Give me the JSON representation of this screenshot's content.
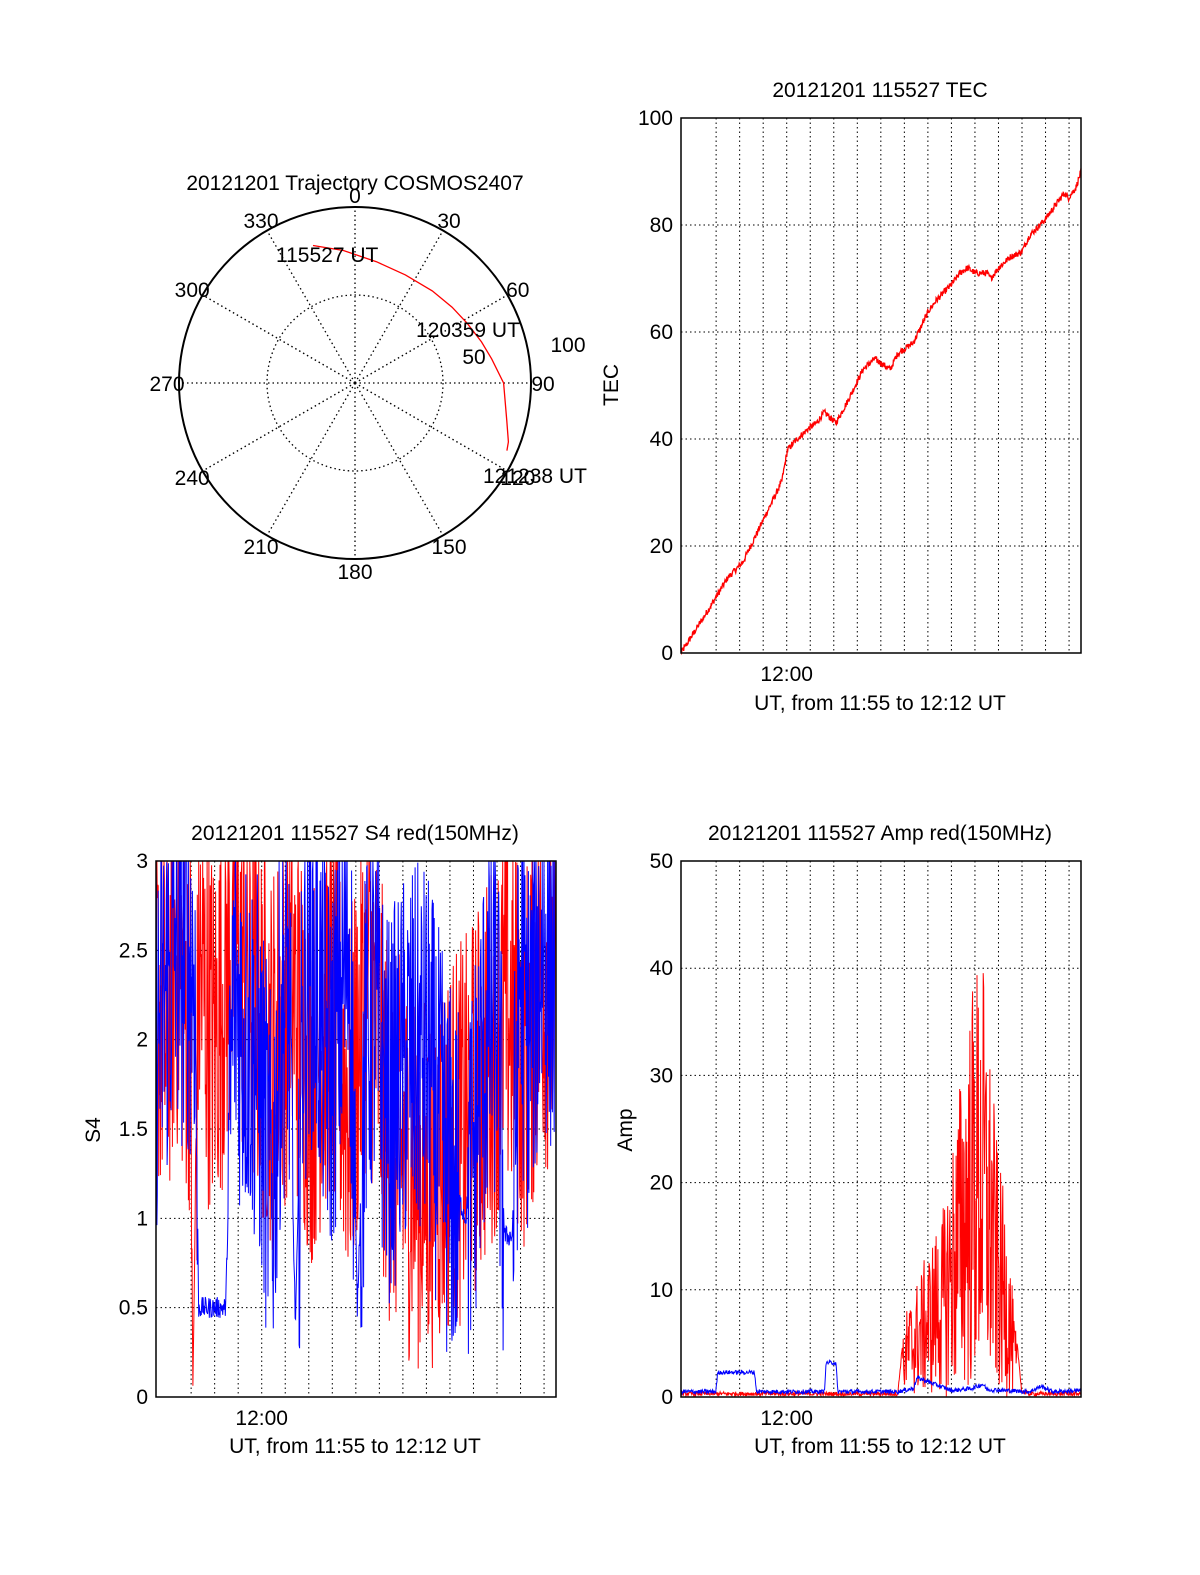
{
  "colors": {
    "red": "#ff0000",
    "blue": "#0000ff",
    "axis": "#000000",
    "grid": "#000000"
  },
  "chart_data": [
    {
      "type": "polar",
      "title": "20121201 Trajectory COSMOS2407",
      "azimuth_labels": [
        "0",
        "30",
        "60",
        "90",
        "120",
        "150",
        "180",
        "210",
        "240",
        "270",
        "300",
        "330"
      ],
      "radius_labels": [
        "50",
        "100"
      ],
      "series": [
        {
          "color": "red",
          "azimuth": [
            -17,
            -5,
            10,
            25,
            40,
            52,
            62,
            72,
            80,
            90,
            104,
            111,
            114
          ],
          "zenith": [
            73.5,
            68,
            63,
            61,
            61.5,
            63,
            65,
            68,
            71,
            76,
            80,
            84,
            85
          ]
        }
      ],
      "annotations": [
        "115527 UT",
        "120359 UT",
        "121238 UT"
      ]
    },
    {
      "type": "line",
      "title": "20121201 115527 TEC",
      "xlabel": "UT, from 11:55 to 12:12 UT",
      "ylabel": "TEC",
      "xlim": [
        0,
        1033
      ],
      "xtick_label": "12:00",
      "xtick_value": 273,
      "ylim": [
        0,
        100
      ],
      "yticks": [
        "0",
        "20",
        "40",
        "60",
        "80",
        "100"
      ],
      "grid": true,
      "series": [
        {
          "color": "red",
          "x": [
            0,
            70,
            120,
            160,
            200,
            260,
            275,
            300,
            330,
            350,
            370,
            400,
            430,
            450,
            470,
            500,
            540,
            560,
            600,
            640,
            660,
            700,
            720,
            740,
            760,
            790,
            800,
            820,
            850,
            880,
            900,
            940,
            990,
            1000,
            1020,
            1033
          ],
          "y": [
            0,
            8,
            14,
            17,
            23,
            32,
            38,
            40,
            42,
            43,
            45,
            43,
            47,
            50,
            53,
            55,
            53,
            56,
            58,
            64,
            66,
            69,
            71,
            72,
            71,
            71,
            70,
            72,
            74,
            75,
            78,
            81,
            86,
            85,
            87,
            90
          ]
        }
      ]
    },
    {
      "type": "line",
      "title": "20121201 115527 S4 red(150MHz)",
      "xlabel": "UT, from 11:55 to 12:12 UT",
      "ylabel": "S4",
      "xlim": [
        0,
        1033
      ],
      "xtick_label": "12:00",
      "xtick_value": 273,
      "ylim": [
        0,
        3
      ],
      "yticks": [
        "0",
        "0.5",
        "1",
        "1.5",
        "2",
        "2.5",
        "3"
      ],
      "grid": true,
      "series": [
        {
          "color": "red",
          "x": [
            0,
            25,
            50,
            75,
            90,
            95,
            110,
            150,
            200,
            250,
            300,
            350,
            400,
            450,
            500,
            550,
            600,
            650,
            700,
            750,
            800,
            850,
            900,
            950,
            1000,
            1033
          ],
          "y": [
            2.3,
            2.0,
            2.5,
            2.2,
            2.1,
            0,
            2.4,
            2.0,
            2.6,
            2.2,
            1.9,
            2.3,
            1.8,
            2.2,
            1.6,
            2.4,
            1.5,
            1.3,
            1.2,
            1.4,
            1.5,
            1.8,
            2.2,
            1.9,
            2.4,
            2.2
          ]
        },
        {
          "color": "blue",
          "x": [
            0,
            50,
            100,
            110,
            130,
            150,
            180,
            200,
            220,
            260,
            300,
            320,
            340,
            360,
            380,
            400,
            450,
            500,
            520,
            540,
            560,
            600,
            650,
            700,
            750,
            800,
            850,
            880,
            900,
            920,
            940,
            960,
            1000,
            1033
          ],
          "y": [
            2.0,
            2.5,
            2.4,
            0.5,
            0.5,
            0.5,
            0.5,
            2.3,
            2.1,
            1.9,
            1.1,
            2.0,
            2.4,
            0.4,
            2.2,
            2.5,
            1.8,
            2.6,
            0.5,
            1.9,
            2.2,
            1.6,
            1.9,
            1.9,
            1.3,
            1.0,
            2.0,
            2.2,
            0.9,
            0.9,
            2.4,
            2.0,
            2.6,
            2.3
          ]
        }
      ]
    },
    {
      "type": "line",
      "title": "20121201 115527 Amp red(150MHz)",
      "xlabel": "UT, from 11:55 to 12:12 UT",
      "ylabel": "Amp",
      "xlim": [
        0,
        1033
      ],
      "xtick_label": "12:00",
      "xtick_value": 273,
      "ylim": [
        0,
        50
      ],
      "yticks": [
        "0",
        "10",
        "20",
        "30",
        "40",
        "50"
      ],
      "grid": true,
      "series": [
        {
          "color": "red",
          "x": [
            0,
            560,
            580,
            620,
            650,
            680,
            700,
            720,
            740,
            750,
            760,
            770,
            780,
            790,
            800,
            810,
            820,
            840,
            860,
            880,
            900,
            1033
          ],
          "y": [
            0.3,
            0.3,
            8,
            12,
            15,
            18,
            24,
            30,
            36,
            38,
            42,
            40,
            41,
            35,
            32,
            27,
            22,
            18,
            8,
            0.5,
            0.3,
            0.3
          ]
        },
        {
          "color": "blue",
          "x": [
            0,
            90,
            95,
            190,
            195,
            370,
            375,
            400,
            405,
            560,
            600,
            610,
            700,
            750,
            780,
            790,
            900,
            930,
            960,
            1033
          ],
          "y": [
            0.5,
            0.5,
            2.3,
            2.3,
            0.5,
            0.5,
            3.2,
            3.2,
            0.5,
            0.5,
            0.8,
            1.8,
            0.6,
            0.8,
            1.2,
            0.7,
            0.5,
            1.0,
            0.5,
            0.6
          ]
        }
      ]
    }
  ]
}
